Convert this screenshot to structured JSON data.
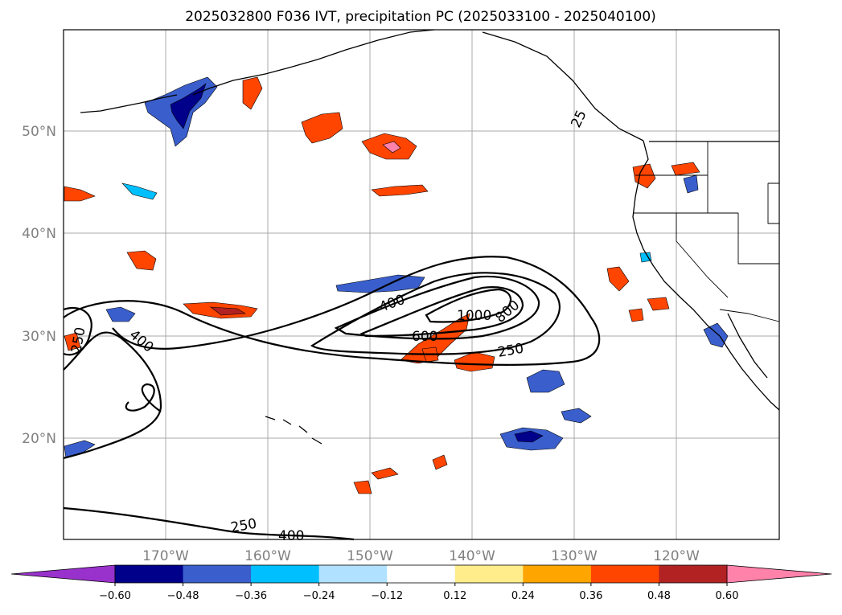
{
  "title": "2025032800 F036 IVT, precipitation PC (2025033100 - 2025040100)",
  "lat_labels": [
    "50°N",
    "40°N",
    "30°N",
    "20°N"
  ],
  "lon_labels": [
    "170°W",
    "160°W",
    "150°W",
    "140°W",
    "130°W",
    "120°W"
  ],
  "ivt_contour_labels": [
    "250",
    "400",
    "400",
    "600",
    "800",
    "1000",
    "250",
    "250",
    "400",
    "25"
  ],
  "colorbar": {
    "ticks": [
      "−0.60",
      "−0.48",
      "−0.36",
      "−0.24",
      "−0.12",
      "0.12",
      "0.24",
      "0.36",
      "0.48",
      "0.60"
    ],
    "colors": [
      "#9932cc",
      "#00008b",
      "#3a5fcd",
      "#00bfff",
      "#b0e2ff",
      "#ffffff",
      "#ffec8b",
      "#ffa500",
      "#ff4500",
      "#b22222",
      "#ff82ab"
    ]
  }
}
